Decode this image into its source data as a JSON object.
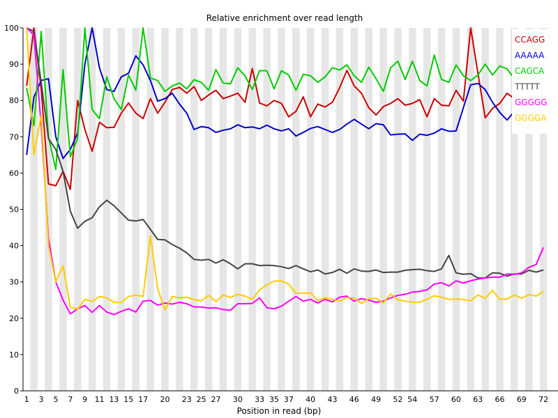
{
  "chart_data": {
    "type": "line",
    "title": "Relative enrichment over read length",
    "xlabel": "Position in read (bp)",
    "ylabel": "",
    "ylim": [
      0,
      100
    ],
    "y_ticks": [
      0,
      10,
      20,
      30,
      40,
      50,
      60,
      70,
      80,
      90,
      100
    ],
    "x_tick_labels": [
      "1",
      "3",
      "5",
      "7",
      "9",
      "11",
      "13",
      "15",
      "17",
      "20",
      "23",
      "25",
      "27",
      "30",
      "33",
      "35",
      "37",
      "40",
      "43",
      "46",
      "49",
      "52",
      "54",
      "57",
      "60",
      "63",
      "66",
      "69",
      "72"
    ],
    "legend_position": "top-right",
    "grid": "alternating vertical bands",
    "x": [
      "1",
      "2",
      "3",
      "4",
      "5",
      "6",
      "7",
      "8",
      "9",
      "10",
      "11",
      "12",
      "13",
      "14",
      "15",
      "16",
      "17",
      "18",
      "19",
      "20",
      "21",
      "22",
      "23",
      "24",
      "25",
      "26",
      "27",
      "28",
      "29",
      "30",
      "31",
      "32",
      "33",
      "34",
      "35",
      "36",
      "37",
      "38",
      "39",
      "40",
      "41",
      "42",
      "43",
      "44",
      "45",
      "46",
      "47",
      "48",
      "49",
      "50",
      "51",
      "52",
      "53",
      "54",
      "55",
      "56",
      "57",
      "58",
      "59",
      "60",
      "61",
      "62",
      "63",
      "64",
      "65",
      "66",
      "67",
      "68",
      "69",
      "70",
      "71",
      "72"
    ],
    "series": [
      {
        "name": "CCAGG",
        "color": "#cc0000",
        "values": [
          84,
          100,
          83,
          57,
          56.5,
          60.5,
          55.5,
          80,
          72,
          66,
          74,
          72.5,
          72.6,
          76.5,
          79.3,
          76.5,
          75,
          80.5,
          76.5,
          79.5,
          83,
          83.6,
          82,
          83.8,
          80,
          81.5,
          82.8,
          80.5,
          81.2,
          82,
          79.5,
          88.8,
          79.3,
          78.5,
          80,
          79.2,
          75.5,
          77,
          81,
          75.5,
          79,
          78.2,
          79.5,
          83.5,
          88.3,
          84,
          82,
          78,
          76,
          78.3,
          79.2,
          80.5,
          78.7,
          79.2,
          80.2,
          75.5,
          80.5,
          78.7,
          78.5,
          82.8,
          79.8,
          100,
          87.5,
          75.2,
          77.8,
          79.2,
          82,
          80.5,
          80.5,
          77.5,
          78,
          76.5
        ]
      },
      {
        "name": "AAAAA",
        "color": "#0000cc",
        "values": [
          65,
          81,
          85.5,
          86,
          70,
          64,
          66.5,
          71,
          90,
          100,
          89,
          83,
          82.5,
          86.5,
          87.5,
          92.3,
          89.8,
          85.5,
          79.8,
          80.5,
          82,
          79,
          76.5,
          72,
          72.8,
          72.5,
          71.2,
          71.8,
          72.2,
          73.3,
          72.5,
          72.7,
          72.2,
          73.2,
          72.2,
          71.6,
          72.2,
          70.2,
          71.2,
          72.3,
          72.8,
          72,
          71.2,
          72,
          73.5,
          74.8,
          73.5,
          72.2,
          73.6,
          73.3,
          70.5,
          70.7,
          70.8,
          69,
          70.7,
          70.4,
          71,
          72.2,
          71.5,
          71.6,
          78,
          84.3,
          84.7,
          83,
          79.5,
          76.7,
          74.6,
          77,
          76.5,
          78,
          77.5,
          77.5
        ]
      },
      {
        "name": "CAGCA",
        "color": "#00cc00",
        "values": [
          83.5,
          73,
          99,
          70,
          61,
          88.5,
          64.5,
          69.5,
          100,
          77.5,
          75,
          86.5,
          80.5,
          77.5,
          87,
          82.8,
          100,
          86.2,
          85.5,
          82.5,
          84,
          84.8,
          83.2,
          85.7,
          85,
          82.8,
          88.5,
          84.8,
          84.6,
          89,
          86.8,
          83,
          88.2,
          88.2,
          83.2,
          88.2,
          87,
          82.8,
          87.2,
          86.8,
          85,
          86.5,
          89,
          88.4,
          89.8,
          86.8,
          85,
          89.2,
          86,
          82.5,
          89,
          90.8,
          85.8,
          90.8,
          85.5,
          84,
          92.5,
          85.8,
          85,
          89.8,
          86.8,
          85.5,
          87,
          90,
          87,
          89.5,
          88.7,
          86,
          90.5,
          88.5,
          84.5,
          87
        ]
      },
      {
        "name": "TTTTT",
        "color": "#444444",
        "values": [
          100,
          99,
          85,
          69.5,
          66.5,
          60.5,
          49.5,
          44.8,
          46.7,
          47.7,
          50.7,
          52.5,
          51,
          49,
          47,
          46.8,
          47.2,
          44.5,
          41.7,
          41.6,
          40.3,
          39.3,
          38,
          36.2,
          36,
          36.2,
          35.2,
          36.1,
          35,
          33.6,
          35,
          35,
          34.5,
          34.6,
          34.5,
          34.2,
          33.7,
          34.5,
          33.6,
          32.8,
          33.3,
          32.2,
          32.6,
          33.5,
          32.4,
          33.6,
          33,
          32.9,
          33.3,
          32.6,
          32.7,
          32.7,
          33.2,
          33.4,
          33.5,
          33.1,
          32.9,
          33.6,
          37.3,
          32.5,
          32.1,
          32.3,
          31.1,
          31.1,
          32.5,
          32.4,
          31.6,
          32.2,
          32.2,
          33.2,
          32.7,
          33.3
        ]
      },
      {
        "name": "GGGGG",
        "color": "#ff00ff",
        "values": [
          100,
          98,
          73,
          42,
          30,
          25,
          21.2,
          22.6,
          23.5,
          21.6,
          23.5,
          21.7,
          21,
          21.9,
          22.6,
          21.7,
          24.7,
          24.9,
          23.6,
          24.2,
          23.9,
          24.4,
          24,
          23.1,
          23.1,
          22.8,
          22.9,
          22.4,
          22.2,
          24,
          24,
          24.1,
          25.6,
          22.9,
          22.6,
          23.3,
          24.7,
          26,
          24.7,
          25.2,
          24.2,
          25.2,
          24.5,
          25.8,
          26.1,
          24.7,
          25.4,
          25,
          24.4,
          24.7,
          25.6,
          26.3,
          26.6,
          27.2,
          27.4,
          27.8,
          29.4,
          29.8,
          28.9,
          30.3,
          29.7,
          30.3,
          30.8,
          31.1,
          31.3,
          31.3,
          32.2,
          32.1,
          32.5,
          34,
          34.8,
          39.5
        ]
      },
      {
        "name": "GGGGA",
        "color": "#ffcc00",
        "values": [
          100,
          65,
          76,
          40,
          30,
          34.5,
          23,
          22.5,
          25.2,
          24.6,
          26,
          25.6,
          24.4,
          24.3,
          26,
          26.4,
          26,
          42.7,
          28.1,
          22.3,
          26,
          25.6,
          25.8,
          25.1,
          24.8,
          26.3,
          24.6,
          26.4,
          25.7,
          26.6,
          26.1,
          25.2,
          27.8,
          29.2,
          30.2,
          30.3,
          29.4,
          26.9,
          26.9,
          27,
          24.9,
          25.6,
          25.2,
          24.7,
          25.7,
          25.6,
          24.1,
          25.4,
          25.5,
          24.2,
          26.7,
          25.1,
          24.7,
          24.4,
          24.4,
          25.2,
          26.2,
          25.8,
          25.2,
          25.3,
          25.2,
          24.8,
          26.4,
          25.5,
          27.7,
          25.2,
          25.3,
          26.4,
          25.5,
          26.5,
          26.1,
          27.4
        ]
      }
    ]
  }
}
